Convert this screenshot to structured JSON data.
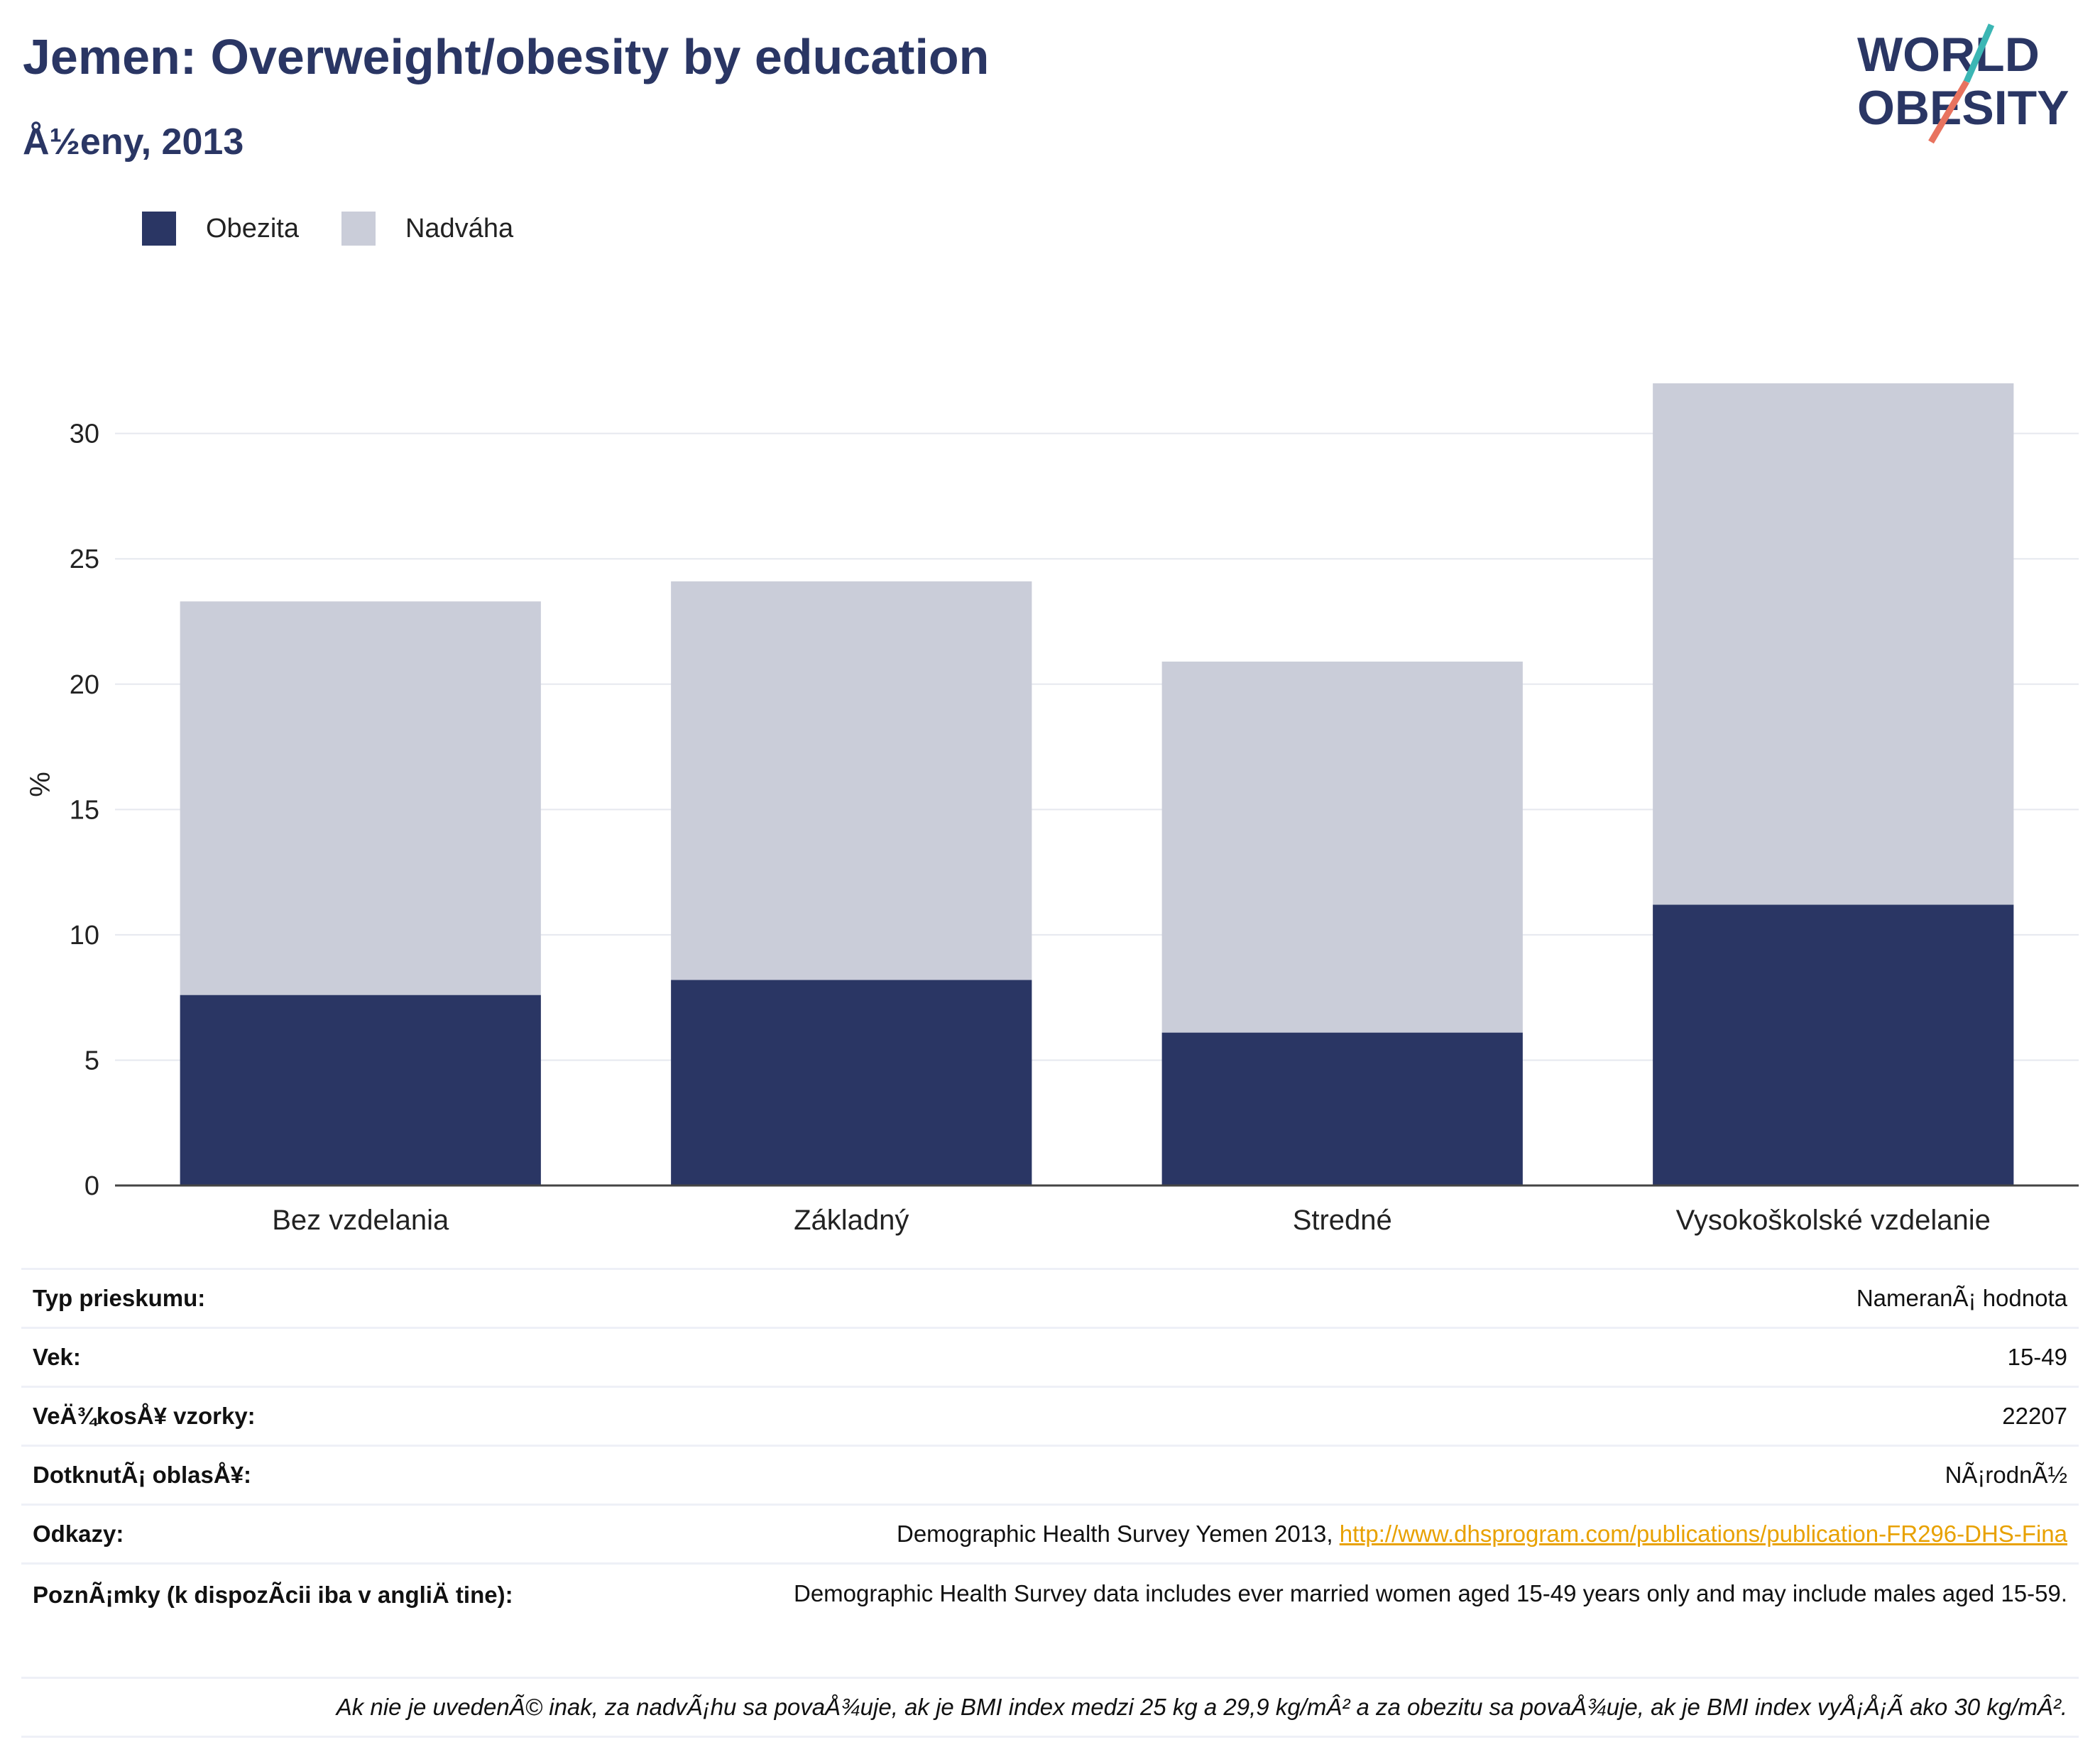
{
  "header": {
    "title": "Jemen: Overweight/obesity by education",
    "subtitle": "Å½eny, 2013",
    "logo_line1": "WORLD",
    "logo_line2": "OBESITY"
  },
  "legend": {
    "items": [
      {
        "label": "Obezita",
        "color": "#2a3664"
      },
      {
        "label": "Nadváha",
        "color": "#cacdd9"
      }
    ]
  },
  "chart_data": {
    "type": "bar",
    "stacked": true,
    "categories": [
      "Bez vzdelania",
      "Základný",
      "Stredné",
      "Vysokoškolské vzdelanie"
    ],
    "series": [
      {
        "name": "Obezita",
        "values": [
          7.6,
          8.2,
          6.1,
          11.2
        ],
        "color": "#2a3664"
      },
      {
        "name": "Nadváha",
        "values": [
          15.7,
          15.9,
          14.8,
          20.8
        ],
        "color": "#cacdd9"
      }
    ],
    "ylabel": "%",
    "ylim": [
      0,
      32
    ],
    "yticks": [
      0,
      5,
      10,
      15,
      20,
      25,
      30
    ],
    "grid": true,
    "legend_position": "top-left"
  },
  "info": {
    "rows": [
      {
        "key": "Typ prieskumu:",
        "value": "NameranÃ¡ hodnota"
      },
      {
        "key": "Vek:",
        "value": "15-49"
      },
      {
        "key": "VeÄ¾kosÅ¥ vzorky:",
        "value": "22207"
      },
      {
        "key": "DotknutÃ¡ oblasÅ¥:",
        "value": "NÃ¡rodnÃ½"
      }
    ],
    "references_key": "Odkazy:",
    "references_text": "Demographic Health Survey Yemen 2013, ",
    "references_link": "http://www.dhsprogram.com/publications/publication-FR296-DHS-Fina",
    "notes_key": "PoznÃ¡mky (k dispozÃcii iba v angliÄ tine):",
    "notes_value": "Demographic Health Survey data includes ever married women aged 15-49 years only and may include males aged 15-59.",
    "footnote": "Ak nie je uvedenÃ© inak, za nadvÃ¡hu sa povaÅ¾uje, ak je BMI index medzi 25 kg a 29,9 kg/mÂ² a za obezitu sa povaÅ¾uje, ak je BMI index vyÅ¡Å¡Ã ako 30 kg/mÂ²."
  }
}
